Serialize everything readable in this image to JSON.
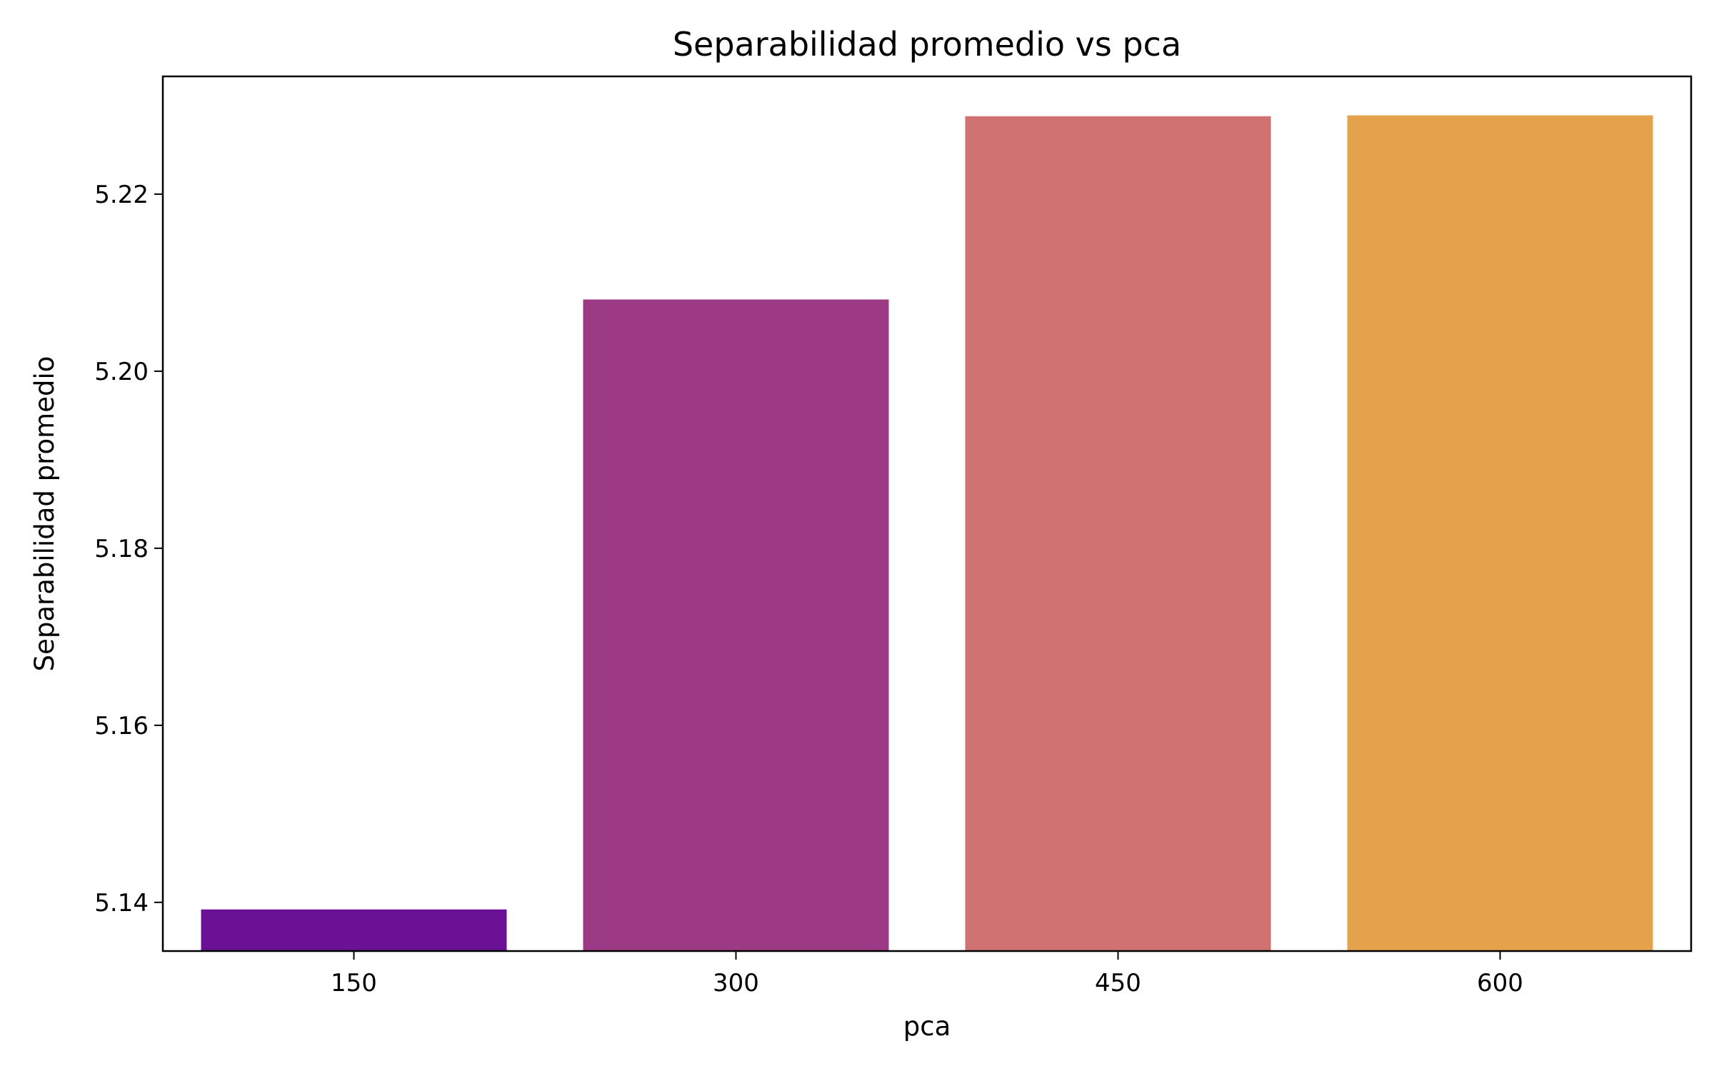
{
  "chart_data": {
    "type": "bar",
    "title": "Separabilidad promedio vs pca",
    "xlabel": "pca",
    "ylabel": "Separabilidad promedio",
    "categories": [
      "150",
      "300",
      "450",
      "600"
    ],
    "values": [
      5.1392,
      5.2081,
      5.2288,
      5.2289
    ],
    "colors": [
      "#6a1196",
      "#9c3a85",
      "#d07272",
      "#e5a24d"
    ],
    "ylim": [
      5.1345,
      5.2333
    ],
    "yticks": [
      5.14,
      5.16,
      5.18,
      5.2,
      5.22
    ],
    "ytick_labels": [
      "5.14",
      "5.16",
      "5.18",
      "5.20",
      "5.22"
    ],
    "grid": false,
    "legend": "none"
  }
}
